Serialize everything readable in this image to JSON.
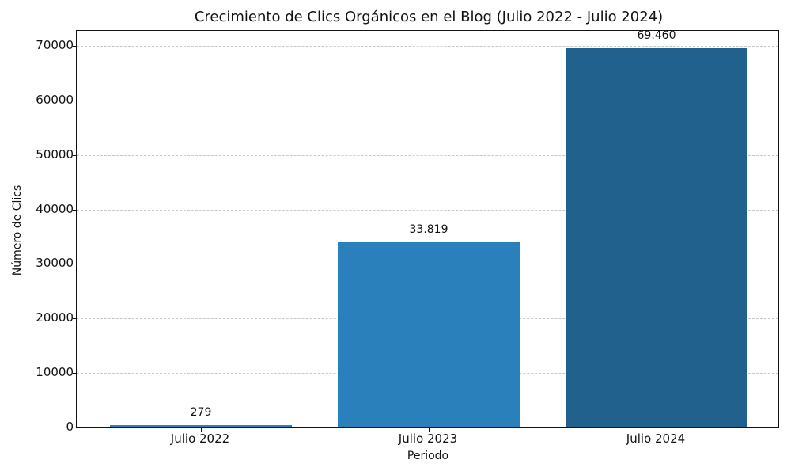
{
  "chart_data": {
    "type": "bar",
    "title": "Crecimiento de Clics Orgánicos en el Blog (Julio 2022 - Julio 2024)",
    "xlabel": "Periodo",
    "ylabel": "Número de Clics",
    "categories": [
      "Julio 2022",
      "Julio 2023",
      "Julio 2024"
    ],
    "values": [
      279,
      33819,
      69460
    ],
    "value_labels": [
      "279",
      "33.819",
      "69.460"
    ],
    "colors": [
      "#2e7fbd",
      "#2a80ba",
      "#20628d"
    ],
    "ylim": [
      0,
      72900
    ],
    "yticks": [
      0,
      10000,
      20000,
      30000,
      40000,
      50000,
      60000,
      70000
    ],
    "ytick_labels": [
      "0",
      "10000",
      "20000",
      "30000",
      "40000",
      "50000",
      "60000",
      "70000"
    ],
    "grid": "y-dashed",
    "legend": null
  }
}
